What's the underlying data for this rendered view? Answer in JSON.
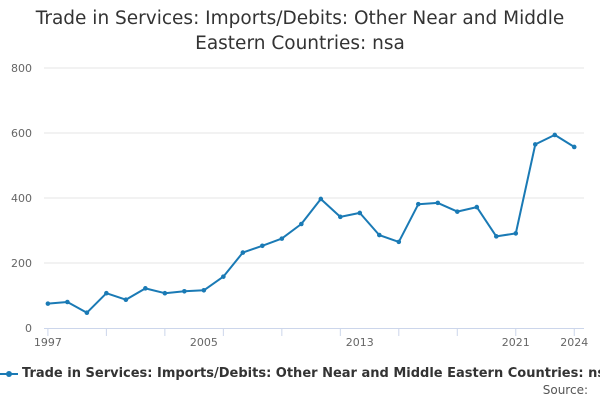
{
  "chart_data": {
    "type": "line",
    "title_lines": [
      "Trade in Services: Imports/Debits: Other Near and Middle",
      "Eastern Countries: nsa"
    ],
    "xlabel": "",
    "ylabel": "",
    "x": [
      1997,
      1998,
      1999,
      2000,
      2001,
      2002,
      2003,
      2004,
      2005,
      2006,
      2007,
      2008,
      2009,
      2010,
      2011,
      2012,
      2013,
      2014,
      2015,
      2016,
      2017,
      2018,
      2019,
      2020,
      2021,
      2022,
      2023,
      2024
    ],
    "series": [
      {
        "name": "Trade in Services: Imports/Debits: Other Near and Middle Eastern Countries: nsa",
        "color": "#1a7ab5",
        "values": [
          75,
          80,
          47,
          107,
          87,
          122,
          107,
          113,
          116,
          158,
          232,
          253,
          275,
          320,
          397,
          342,
          354,
          286,
          265,
          381,
          385,
          358,
          372,
          282,
          291,
          565,
          594,
          557
        ]
      }
    ],
    "xlim": [
      1996.8,
      2024.5
    ],
    "ylim": [
      0,
      800
    ],
    "y_ticks": [
      0,
      200,
      400,
      600,
      800
    ],
    "x_tick_labels": [
      1997,
      2005,
      2013,
      2021,
      2024
    ],
    "grid": true,
    "legend_position": "bottom",
    "source_label": "Source:"
  }
}
